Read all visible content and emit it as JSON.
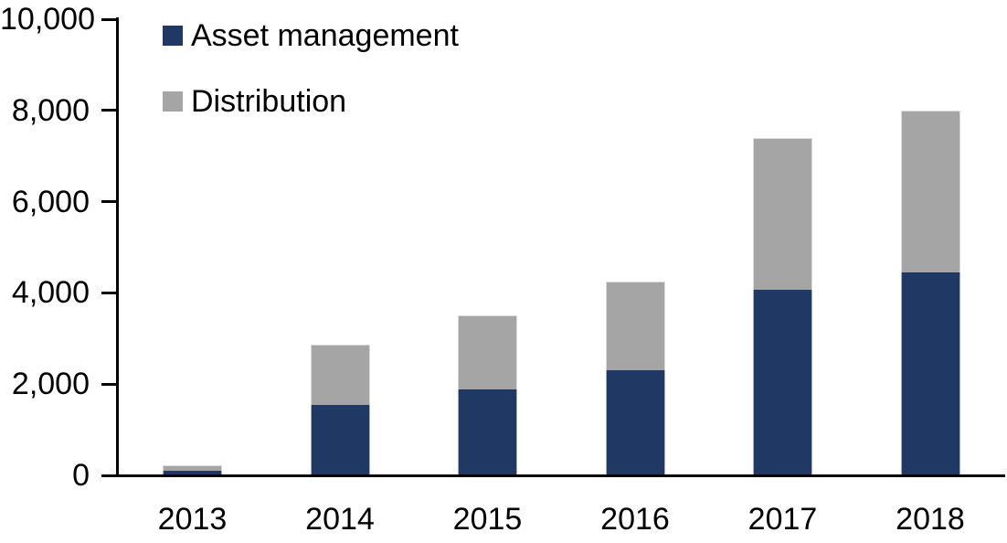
{
  "chart_data": {
    "type": "bar",
    "stacked": true,
    "title": "",
    "xlabel": "",
    "ylabel": "",
    "categories": [
      "2013",
      "2014",
      "2015",
      "2016",
      "2017",
      "2018"
    ],
    "series": [
      {
        "name": "Asset management",
        "color": "#1F3864",
        "values": [
          100,
          1550,
          1890,
          2310,
          4060,
          4440
        ]
      },
      {
        "name": "Distribution",
        "color": "#A5A5A5",
        "values": [
          120,
          1310,
          1610,
          1940,
          3330,
          3560
        ]
      }
    ],
    "totals": [
      220,
      2860,
      3500,
      4250,
      7390,
      8000
    ],
    "ylim": [
      0,
      10000
    ],
    "ytick_values": [
      0,
      2000,
      4000,
      6000,
      8000,
      10000
    ],
    "ytick_labels": [
      "0",
      "2,000",
      "4,000",
      "6,000",
      "8,000",
      "10,000"
    ],
    "legend_position": "top-left",
    "grid": false,
    "axis_color": "#000000",
    "background": "#FFFFFF"
  }
}
